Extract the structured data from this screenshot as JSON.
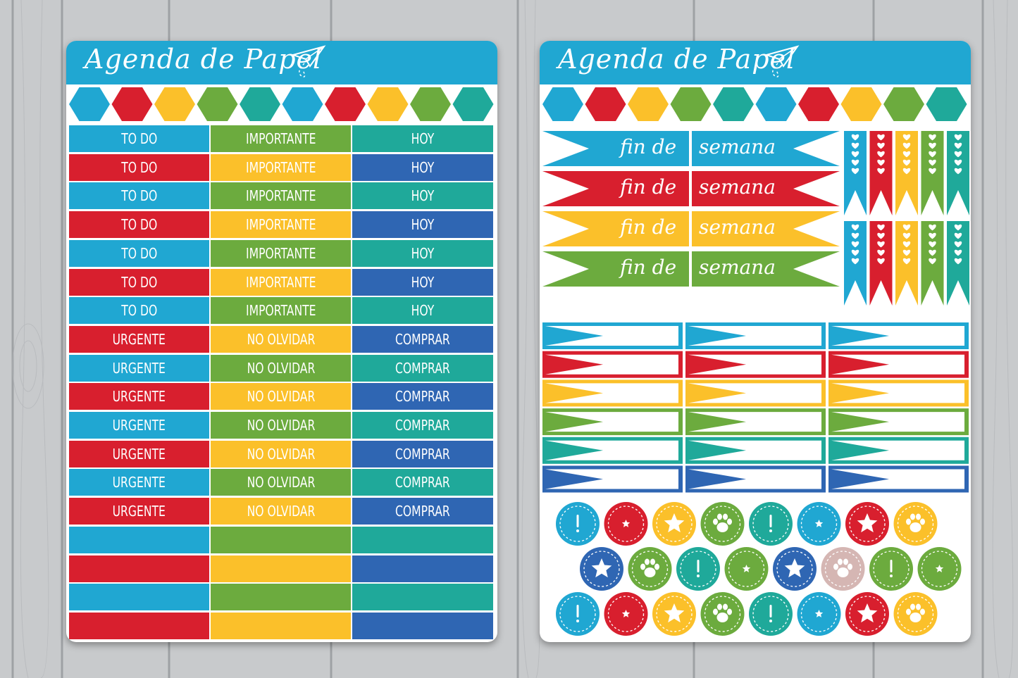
{
  "brand": {
    "title": "Agenda de Papel"
  },
  "colors": {
    "blue": "#20a7d2",
    "red": "#d81f2e",
    "yellow": "#fbc02a",
    "green": "#6cab3e",
    "teal": "#1fa99a",
    "navy": "#2f66b3",
    "rose": "#d5b6b3"
  },
  "left_sheet": {
    "hex_colors": [
      "blue",
      "red",
      "yellow",
      "green",
      "teal",
      "blue",
      "red",
      "yellow",
      "green",
      "teal"
    ],
    "rows": [
      {
        "cells": [
          {
            "text": "TO DO",
            "color": "blue"
          },
          {
            "text": "IMPORTANTE",
            "color": "green"
          },
          {
            "text": "HOY",
            "color": "teal"
          }
        ]
      },
      {
        "cells": [
          {
            "text": "TO DO",
            "color": "red"
          },
          {
            "text": "IMPORTANTE",
            "color": "yellow"
          },
          {
            "text": "HOY",
            "color": "navy"
          }
        ]
      },
      {
        "cells": [
          {
            "text": "TO DO",
            "color": "blue"
          },
          {
            "text": "IMPORTANTE",
            "color": "green"
          },
          {
            "text": "HOY",
            "color": "teal"
          }
        ]
      },
      {
        "cells": [
          {
            "text": "TO DO",
            "color": "red"
          },
          {
            "text": "IMPORTANTE",
            "color": "yellow"
          },
          {
            "text": "HOY",
            "color": "navy"
          }
        ]
      },
      {
        "cells": [
          {
            "text": "TO DO",
            "color": "blue"
          },
          {
            "text": "IMPORTANTE",
            "color": "green"
          },
          {
            "text": "HOY",
            "color": "teal"
          }
        ]
      },
      {
        "cells": [
          {
            "text": "TO DO",
            "color": "red"
          },
          {
            "text": "IMPORTANTE",
            "color": "yellow"
          },
          {
            "text": "HOY",
            "color": "navy"
          }
        ]
      },
      {
        "cells": [
          {
            "text": "TO DO",
            "color": "blue"
          },
          {
            "text": "IMPORTANTE",
            "color": "green"
          },
          {
            "text": "HOY",
            "color": "teal"
          }
        ]
      },
      {
        "cells": [
          {
            "text": "URGENTE",
            "color": "red"
          },
          {
            "text": "NO OLVIDAR",
            "color": "yellow"
          },
          {
            "text": "COMPRAR",
            "color": "navy"
          }
        ]
      },
      {
        "cells": [
          {
            "text": "URGENTE",
            "color": "blue"
          },
          {
            "text": "NO OLVIDAR",
            "color": "green"
          },
          {
            "text": "COMPRAR",
            "color": "teal"
          }
        ]
      },
      {
        "cells": [
          {
            "text": "URGENTE",
            "color": "red"
          },
          {
            "text": "NO OLVIDAR",
            "color": "yellow"
          },
          {
            "text": "COMPRAR",
            "color": "navy"
          }
        ]
      },
      {
        "cells": [
          {
            "text": "URGENTE",
            "color": "blue"
          },
          {
            "text": "NO OLVIDAR",
            "color": "green"
          },
          {
            "text": "COMPRAR",
            "color": "teal"
          }
        ]
      },
      {
        "cells": [
          {
            "text": "URGENTE",
            "color": "red"
          },
          {
            "text": "NO OLVIDAR",
            "color": "yellow"
          },
          {
            "text": "COMPRAR",
            "color": "navy"
          }
        ]
      },
      {
        "cells": [
          {
            "text": "URGENTE",
            "color": "blue"
          },
          {
            "text": "NO OLVIDAR",
            "color": "green"
          },
          {
            "text": "COMPRAR",
            "color": "teal"
          }
        ]
      },
      {
        "cells": [
          {
            "text": "URGENTE",
            "color": "red"
          },
          {
            "text": "NO OLVIDAR",
            "color": "yellow"
          },
          {
            "text": "COMPRAR",
            "color": "navy"
          }
        ]
      },
      {
        "cells": [
          {
            "text": "",
            "color": "blue"
          },
          {
            "text": "",
            "color": "green"
          },
          {
            "text": "",
            "color": "teal"
          }
        ]
      },
      {
        "cells": [
          {
            "text": "",
            "color": "red"
          },
          {
            "text": "",
            "color": "yellow"
          },
          {
            "text": "",
            "color": "navy"
          }
        ]
      },
      {
        "cells": [
          {
            "text": "",
            "color": "blue"
          },
          {
            "text": "",
            "color": "green"
          },
          {
            "text": "",
            "color": "teal"
          }
        ]
      },
      {
        "cells": [
          {
            "text": "",
            "color": "red"
          },
          {
            "text": "",
            "color": "yellow"
          },
          {
            "text": "",
            "color": "navy"
          }
        ]
      }
    ]
  },
  "right_sheet": {
    "hex_colors": [
      "blue",
      "red",
      "yellow",
      "green",
      "teal",
      "blue",
      "red",
      "yellow",
      "green",
      "teal"
    ],
    "weekend_flags": [
      {
        "left": "fin de",
        "right": "semana",
        "color": "blue"
      },
      {
        "left": "fin de",
        "right": "semana",
        "color": "red"
      },
      {
        "left": "fin de",
        "right": "semana",
        "color": "yellow"
      },
      {
        "left": "fin de",
        "right": "semana",
        "color": "green"
      }
    ],
    "heart_flag_colors": [
      "blue",
      "red",
      "yellow",
      "green",
      "teal"
    ],
    "arrow_label_colors": [
      "blue",
      "red",
      "yellow",
      "green",
      "teal",
      "navy"
    ],
    "circle_rows": [
      [
        {
          "c": "blue",
          "i": "exclaim"
        },
        {
          "c": "red",
          "i": "star-small"
        },
        {
          "c": "yellow",
          "i": "star"
        },
        {
          "c": "green",
          "i": "paw"
        },
        {
          "c": "teal",
          "i": "exclaim"
        },
        {
          "c": "blue",
          "i": "star-small"
        },
        {
          "c": "red",
          "i": "star"
        },
        {
          "c": "yellow",
          "i": "paw"
        }
      ],
      [
        {
          "c": "navy",
          "i": "star"
        },
        {
          "c": "green",
          "i": "paw"
        },
        {
          "c": "teal",
          "i": "exclaim"
        },
        {
          "c": "green",
          "i": "star-small"
        },
        {
          "c": "navy",
          "i": "star"
        },
        {
          "c": "rose",
          "i": "paw"
        },
        {
          "c": "green",
          "i": "exclaim"
        },
        {
          "c": "green",
          "i": "star-small"
        }
      ],
      [
        {
          "c": "blue",
          "i": "exclaim"
        },
        {
          "c": "red",
          "i": "star-small"
        },
        {
          "c": "yellow",
          "i": "star"
        },
        {
          "c": "green",
          "i": "paw"
        },
        {
          "c": "teal",
          "i": "exclaim"
        },
        {
          "c": "blue",
          "i": "star-small"
        },
        {
          "c": "red",
          "i": "star"
        },
        {
          "c": "yellow",
          "i": "paw"
        }
      ]
    ]
  }
}
